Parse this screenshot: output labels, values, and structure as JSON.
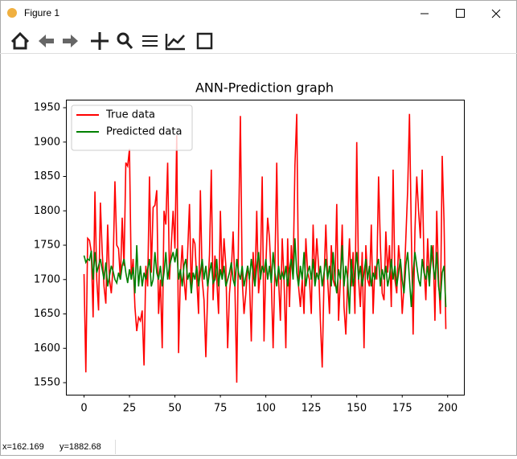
{
  "window": {
    "title": "Figure 1",
    "status": [
      "x=162.169",
      "y=1882.68"
    ]
  },
  "chart_data": {
    "type": "line",
    "title": "ANN-Prediction graph",
    "x": [
      0,
      1,
      2,
      3,
      4,
      5,
      6,
      7,
      8,
      9,
      10,
      11,
      12,
      13,
      14,
      15,
      16,
      17,
      18,
      19,
      20,
      21,
      22,
      23,
      24,
      25,
      26,
      27,
      28,
      29,
      30,
      31,
      32,
      33,
      34,
      35,
      36,
      37,
      38,
      39,
      40,
      41,
      42,
      43,
      44,
      45,
      46,
      47,
      48,
      49,
      50,
      51,
      52,
      53,
      54,
      55,
      56,
      57,
      58,
      59,
      60,
      61,
      62,
      63,
      64,
      65,
      66,
      67,
      68,
      69,
      70,
      71,
      72,
      73,
      74,
      75,
      76,
      77,
      78,
      79,
      80,
      81,
      82,
      83,
      84,
      85,
      86,
      87,
      88,
      89,
      90,
      91,
      92,
      93,
      94,
      95,
      96,
      97,
      98,
      99,
      100,
      101,
      102,
      103,
      104,
      105,
      106,
      107,
      108,
      109,
      110,
      111,
      112,
      113,
      114,
      115,
      116,
      117,
      118,
      119,
      120,
      121,
      122,
      123,
      124,
      125,
      126,
      127,
      128,
      129,
      130,
      131,
      132,
      133,
      134,
      135,
      136,
      137,
      138,
      139,
      140,
      141,
      142,
      143,
      144,
      145,
      146,
      147,
      148,
      149,
      150,
      151,
      152,
      153,
      154,
      155,
      156,
      157,
      158,
      159,
      160,
      161,
      162,
      163,
      164,
      165,
      166,
      167,
      168,
      169,
      170,
      171,
      172,
      173,
      174,
      175,
      176,
      177,
      178,
      179,
      180,
      181,
      182,
      183,
      184,
      185,
      186,
      187,
      188,
      189,
      190,
      191,
      192,
      193,
      194,
      195,
      196,
      197,
      198,
      199
    ],
    "series": [
      {
        "name": "True data",
        "color": "#ff0000",
        "values": [
          1708,
          1565,
          1760,
          1757,
          1740,
          1645,
          1828,
          1700,
          1655,
          1812,
          1740,
          1690,
          1665,
          1780,
          1700,
          1680,
          1720,
          1843,
          1750,
          1745,
          1700,
          1790,
          1720,
          1870,
          1865,
          1890,
          1700,
          1730,
          1660,
          1625,
          1645,
          1640,
          1655,
          1575,
          1720,
          1690,
          1850,
          1710,
          1805,
          1808,
          1830,
          1650,
          1700,
          1600,
          1800,
          1780,
          1870,
          1700,
          1750,
          1800,
          1745,
          1910,
          1593,
          1705,
          1750,
          1700,
          1670,
          1740,
          1810,
          1680,
          1760,
          1752,
          1700,
          1650,
          1830,
          1700,
          1670,
          1587,
          1680,
          1736,
          1860,
          1670,
          1735,
          1700,
          1650,
          1800,
          1700,
          1760,
          1720,
          1600,
          1680,
          1712,
          1770,
          1690,
          1550,
          1770,
          1938,
          1700,
          1650,
          1680,
          1720,
          1700,
          1610,
          1740,
          1690,
          1800,
          1680,
          1712,
          1850,
          1610,
          1720,
          1790,
          1760,
          1700,
          1600,
          1720,
          1870,
          1700,
          1640,
          1760,
          1700,
          1600,
          1760,
          1660,
          1750,
          1710,
          1866,
          1941,
          1690,
          1660,
          1700,
          1650,
          1760,
          1710,
          1700,
          1650,
          1780,
          1700,
          1760,
          1720,
          1640,
          1572,
          1700,
          1780,
          1700,
          1650,
          1750,
          1700,
          1690,
          1810,
          1640,
          1700,
          1780,
          1660,
          1620,
          1700,
          1760,
          1690,
          1740,
          1650,
          1900,
          1700,
          1660,
          1740,
          1600,
          1750,
          1700,
          1690,
          1780,
          1650,
          1720,
          1700,
          1850,
          1750,
          1680,
          1670,
          1770,
          1710,
          1750,
          1660,
          1860,
          1700,
          1680,
          1750,
          1720,
          1650,
          1690,
          1760,
          1830,
          1941,
          1770,
          1620,
          1770,
          1850,
          1800,
          1760,
          1860,
          1720,
          1670,
          1760,
          1700,
          1730,
          1750,
          1640,
          1800,
          1700,
          1650,
          1880,
          1785,
          1628
        ]
      },
      {
        "name": "Predicted data",
        "color": "#008000",
        "values": [
          1735,
          1725,
          1730,
          1728,
          1742,
          1700,
          1740,
          1710,
          1720,
          1730,
          1715,
          1700,
          1725,
          1690,
          1705,
          1720,
          1712,
          1700,
          1695,
          1710,
          1700,
          1720,
          1730,
          1710,
          1695,
          1715,
          1700,
          1718,
          1680,
          1750,
          1690,
          1720,
          1690,
          1710,
          1700,
          1715,
          1730,
          1690,
          1700,
          1740,
          1710,
          1700,
          1720,
          1690,
          1710,
          1740,
          1700,
          1720,
          1730,
          1740,
          1725,
          1745,
          1700,
          1715,
          1690,
          1720,
          1730,
          1700,
          1710,
          1680,
          1710,
          1700,
          1720,
          1690,
          1710,
          1730,
          1700,
          1720,
          1690,
          1710,
          1725,
          1695,
          1700,
          1730,
          1690,
          1715,
          1700,
          1720,
          1690,
          1700,
          1710,
          1725,
          1700,
          1690,
          1730,
          1710,
          1700,
          1720,
          1690,
          1705,
          1720,
          1700,
          1730,
          1710,
          1690,
          1720,
          1740,
          1700,
          1720,
          1710,
          1730,
          1700,
          1720,
          1695,
          1740,
          1710,
          1690,
          1720,
          1700,
          1710,
          1700,
          1720,
          1690,
          1715,
          1730,
          1700,
          1760,
          1710,
          1690,
          1720,
          1700,
          1740,
          1690,
          1710,
          1720,
          1700,
          1730,
          1690,
          1710,
          1700,
          1720,
          1690,
          1710,
          1730,
          1700,
          1720,
          1690,
          1740,
          1700,
          1680,
          1715,
          1700,
          1750,
          1690,
          1720,
          1700,
          1650,
          1730,
          1690,
          1710,
          1740,
          1700,
          1720,
          1690,
          1710,
          1730,
          1700,
          1720,
          1690,
          1710,
          1700,
          1720,
          1730,
          1690,
          1715,
          1700,
          1720,
          1690,
          1705,
          1730,
          1700,
          1720,
          1690,
          1710,
          1730,
          1700,
          1680,
          1720,
          1740,
          1700,
          1660,
          1710,
          1740,
          1720,
          1700,
          1690,
          1730,
          1710,
          1700,
          1720,
          1690,
          1750,
          1720,
          1700,
          1740,
          1690,
          1670,
          1710,
          1720,
          1660
        ]
      }
    ],
    "xlim": [
      -9.95,
      208.95
    ],
    "xticks": [
      0,
      25,
      50,
      75,
      100,
      125,
      150,
      175,
      200
    ],
    "ylim": [
      1532.5,
      1961.7
    ],
    "yticks": [
      1550,
      1600,
      1650,
      1700,
      1750,
      1800,
      1850,
      1900,
      1950
    ],
    "legend": "upper left"
  }
}
